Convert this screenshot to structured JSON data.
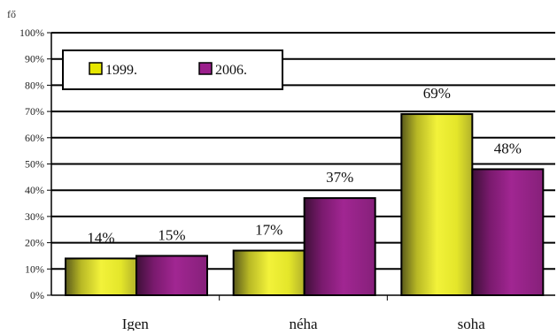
{
  "chart_data": {
    "type": "bar",
    "title": "",
    "unit_label": "fő",
    "xlabel": "",
    "ylabel": "",
    "categories": [
      "Igen",
      "néha",
      "soha"
    ],
    "series": [
      {
        "name": "1999.",
        "values": [
          14,
          17,
          69
        ],
        "labels": [
          "14%",
          "17%",
          "69%"
        ],
        "color": "#e6e600"
      },
      {
        "name": "2006.",
        "values": [
          15,
          37,
          48
        ],
        "labels": [
          "15%",
          "37%",
          "48%"
        ],
        "color": "#9b1f8c"
      }
    ],
    "ylim": [
      0,
      100
    ],
    "yticks": [
      "0%",
      "10%",
      "20%",
      "30%",
      "40%",
      "50%",
      "60%",
      "70%",
      "80%",
      "90%",
      "100%"
    ],
    "grid": true,
    "legend_position": "top-left"
  }
}
